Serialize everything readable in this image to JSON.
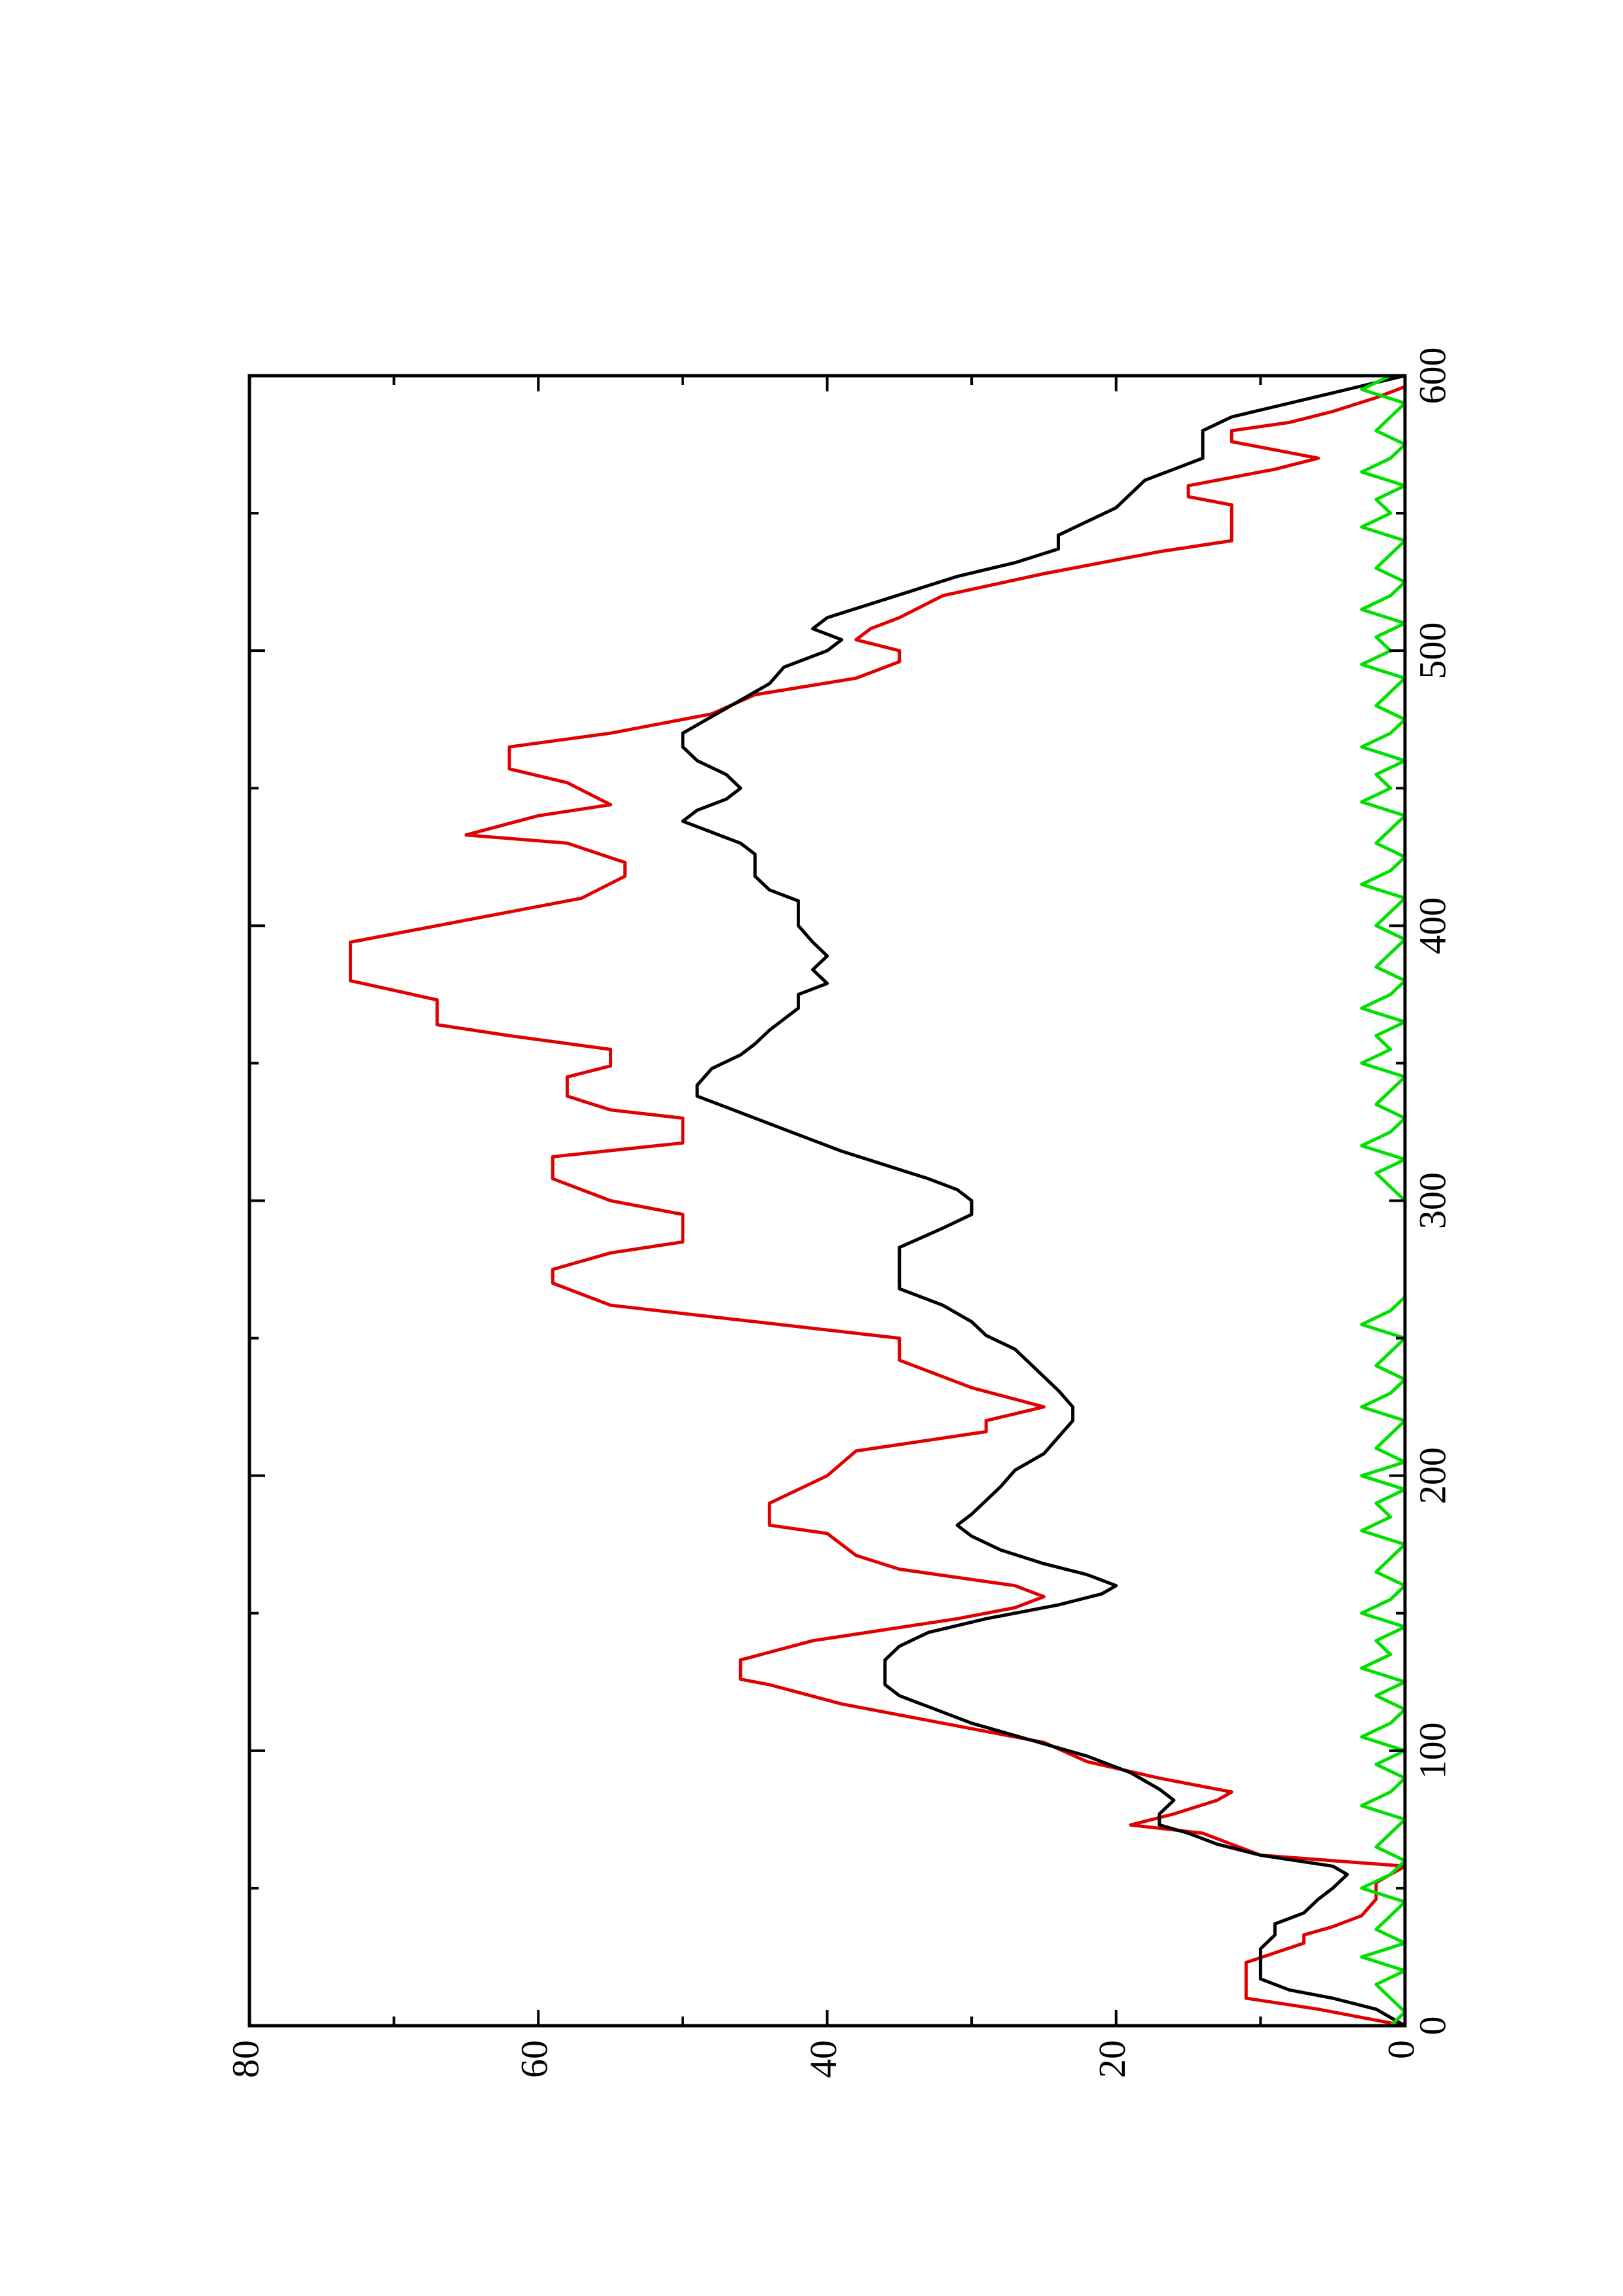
{
  "chart_data": {
    "type": "line",
    "title": "",
    "xlabel": "",
    "ylabel": "",
    "xlim": [
      0,
      600
    ],
    "ylim": [
      0,
      80
    ],
    "grid": false,
    "x_ticks": [
      {
        "value": 0,
        "label": "0"
      },
      {
        "value": 100,
        "label": "100"
      },
      {
        "value": 200,
        "label": "200"
      },
      {
        "value": 300,
        "label": "300"
      },
      {
        "value": 400,
        "label": "400"
      },
      {
        "value": 500,
        "label": "500"
      },
      {
        "value": 600,
        "label": "600"
      }
    ],
    "x_minor_ticks": [
      50,
      150,
      250,
      350,
      450,
      550
    ],
    "y_ticks": [
      {
        "value": 0,
        "label": "0"
      },
      {
        "value": 20,
        "label": "20"
      },
      {
        "value": 40,
        "label": "40"
      },
      {
        "value": 60,
        "label": "60"
      },
      {
        "value": 80,
        "label": "80"
      }
    ],
    "y_minor_ticks": [
      10,
      30,
      50,
      70
    ],
    "series": [
      {
        "color": "#e00000",
        "x": [
          0,
          3,
          6,
          10,
          16,
          23,
          30,
          33,
          36,
          40,
          46,
          52,
          58,
          62,
          70,
          73,
          77,
          82,
          85,
          90,
          96,
          103,
          110,
          117,
          124,
          126,
          133,
          140,
          148,
          152,
          156,
          160,
          166,
          171,
          179,
          182,
          190,
          200,
          209,
          216,
          220,
          225,
          232,
          242,
          250,
          256,
          262,
          270,
          275,
          281,
          285,
          290,
          295,
          300,
          308,
          311,
          316,
          321,
          330,
          333,
          338,
          345,
          349,
          355,
          360,
          364,
          370,
          373,
          380,
          390,
          394,
          400,
          410,
          418,
          423,
          430,
          433,
          440,
          444,
          452,
          457,
          462,
          465,
          470,
          477,
          484,
          490,
          496,
          500,
          504,
          508,
          512,
          520,
          528,
          536,
          540,
          548,
          553,
          556,
          560,
          566,
          570,
          576,
          580,
          583,
          587,
          592,
          596,
          600
        ],
        "y": [
          0,
          3,
          6,
          11,
          11,
          11,
          7,
          7,
          5,
          3,
          2,
          2,
          0,
          10,
          14,
          19,
          16,
          13,
          12,
          17,
          22,
          25,
          32,
          39,
          44,
          46,
          46,
          41,
          31,
          27,
          25,
          27,
          35,
          38,
          40,
          44,
          44,
          40,
          38,
          29,
          29,
          25,
          30,
          35,
          35,
          45,
          55,
          59,
          59,
          55,
          50,
          50,
          50,
          55,
          59,
          59,
          59,
          50,
          50,
          55,
          58,
          58,
          55,
          55,
          62,
          67,
          67,
          67,
          73,
          73,
          73,
          67,
          57,
          54,
          54,
          58,
          65,
          60,
          55,
          58,
          62,
          62,
          62,
          55,
          48,
          45,
          38,
          35,
          35,
          38,
          37,
          35,
          32,
          25,
          17,
          12,
          12,
          12,
          15,
          15,
          9,
          6,
          12,
          12,
          8,
          5,
          2,
          0,
          0
        ]
      },
      {
        "color": "#000000",
        "x": [
          0,
          3,
          6,
          10,
          13,
          17,
          22,
          28,
          33,
          37,
          41,
          46,
          50,
          55,
          58,
          62,
          66,
          70,
          73,
          77,
          82,
          86,
          92,
          98,
          104,
          110,
          116,
          120,
          124,
          128,
          133,
          138,
          143,
          148,
          153,
          157,
          160,
          164,
          168,
          173,
          178,
          182,
          186,
          191,
          196,
          202,
          208,
          214,
          220,
          225,
          231,
          236,
          241,
          246,
          251,
          256,
          262,
          268,
          273,
          279,
          283,
          290,
          295,
          300,
          304,
          308,
          313,
          318,
          322,
          326,
          330,
          334,
          338,
          342,
          348,
          353,
          357,
          362,
          366,
          370,
          375,
          379,
          384,
          389,
          394,
          400,
          405,
          409,
          413,
          418,
          422,
          426,
          430,
          434,
          438,
          442,
          446,
          450,
          455,
          460,
          465,
          470,
          476,
          482,
          488,
          494,
          500,
          504,
          508,
          512,
          517,
          522,
          527,
          532,
          537,
          542,
          547,
          552,
          557,
          562,
          566,
          570,
          575,
          580,
          585,
          590,
          595,
          600
        ],
        "y": [
          0,
          1,
          2,
          5,
          8,
          10,
          10,
          10,
          9,
          9,
          7,
          6,
          5,
          4,
          5,
          10,
          13,
          15,
          17,
          17,
          16,
          17,
          19,
          22,
          26,
          30,
          33,
          35,
          36,
          36,
          36,
          35,
          33,
          29,
          24,
          21,
          20,
          22,
          25,
          28,
          30,
          31,
          30,
          29,
          28,
          27,
          25,
          24,
          23,
          23,
          24,
          25,
          26,
          27,
          29,
          30,
          32,
          35,
          35,
          35,
          35,
          32,
          30,
          30,
          31,
          33,
          36,
          39,
          41,
          43,
          45,
          47,
          49,
          49,
          48,
          46,
          45,
          44,
          43,
          42,
          42,
          40,
          41,
          40,
          41,
          42,
          42,
          42,
          44,
          45,
          45,
          45,
          46,
          48,
          50,
          49,
          47,
          46,
          47,
          49,
          50,
          50,
          48,
          46,
          44,
          43,
          40,
          39,
          41,
          40,
          37,
          34,
          31,
          27,
          24,
          24,
          22,
          20,
          19,
          18,
          16,
          14,
          14,
          14,
          12,
          8,
          4,
          0
        ]
      },
      {
        "color": "#00e000",
        "x": [
          0,
          5,
          10,
          15,
          20,
          25,
          30,
          35,
          40,
          45,
          50,
          55,
          60,
          65,
          70,
          75,
          80,
          85,
          90,
          95,
          100,
          105,
          110,
          115,
          120,
          125,
          130,
          135,
          140,
          145,
          150,
          155,
          160,
          165,
          170,
          175,
          180,
          185,
          190,
          195,
          200,
          205,
          210,
          215,
          220,
          225,
          230,
          235,
          240,
          245,
          250,
          255,
          260,
          265,
          270,
          275,
          280,
          285,
          290,
          295,
          300,
          305,
          310,
          315,
          320,
          325,
          330,
          335,
          340,
          345,
          350,
          355,
          360,
          365,
          370,
          375,
          380,
          385,
          390,
          395,
          400,
          405,
          410,
          415,
          420,
          425,
          430,
          435,
          440,
          445,
          450,
          455,
          460,
          465,
          470,
          475,
          480,
          485,
          490,
          495,
          500,
          505,
          510,
          515,
          520,
          525,
          530,
          535,
          540,
          545,
          550,
          555,
          560,
          565,
          570,
          575,
          580,
          585,
          590,
          595,
          600
        ],
        "y": [
          1,
          0,
          1,
          2,
          0,
          3,
          0,
          2,
          1,
          0,
          3,
          1,
          0,
          2,
          1,
          0,
          3,
          1,
          0,
          2,
          0,
          3,
          1,
          0,
          2,
          0,
          3,
          1,
          2,
          0,
          3,
          1,
          0,
          2,
          1,
          0,
          3,
          1,
          2,
          0,
          3,
          0,
          2,
          1,
          0,
          3,
          1,
          0,
          2,
          1,
          0,
          3,
          1,
          0,
          0,
          0,
          0,
          0,
          0,
          0,
          0,
          1,
          2,
          0,
          3,
          1,
          0,
          2,
          1,
          0,
          3,
          1,
          2,
          0,
          3,
          1,
          0,
          2,
          1,
          0,
          2,
          1,
          0,
          3,
          1,
          0,
          2,
          1,
          0,
          3,
          1,
          2,
          0,
          3,
          1,
          0,
          2,
          1,
          0,
          3,
          1,
          2,
          0,
          3,
          1,
          0,
          2,
          1,
          0,
          3,
          1,
          2,
          0,
          3,
          1,
          0,
          2,
          1,
          0,
          3,
          1
        ]
      }
    ]
  }
}
